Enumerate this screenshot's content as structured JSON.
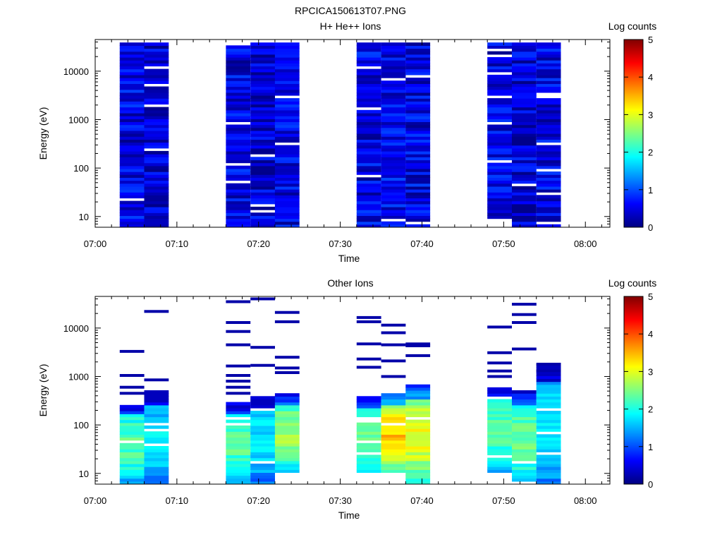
{
  "figure": {
    "title": "RPCICA150613T07.PNG"
  },
  "colorbar": {
    "label": "Log counts",
    "ticks": [
      "0",
      "1",
      "2",
      "3",
      "4",
      "5"
    ],
    "range": [
      0,
      5
    ],
    "colormap": [
      "#000080",
      "#0000ff",
      "#0080ff",
      "#00ffff",
      "#80ff80",
      "#ffff00",
      "#ff8000",
      "#ff0000",
      "#800000"
    ]
  },
  "chart_data": [
    {
      "type": "heatmap",
      "title": "H+ He++ Ions",
      "xlabel": "Time",
      "ylabel": "Energy (eV)",
      "x_ticks": [
        "07:00",
        "07:10",
        "07:20",
        "07:30",
        "07:40",
        "07:50",
        "08:00"
      ],
      "y_ticks": [
        "10",
        "100",
        "1000",
        "10000"
      ],
      "y_scale": "log",
      "ylim": [
        6,
        45000
      ],
      "xlim": [
        "07:00",
        "08:03"
      ],
      "colorbar_label": "Log counts",
      "colorbar_range": [
        0,
        5
      ],
      "blocks": [
        {
          "start": "07:03",
          "end": "07:06",
          "typical_log_counts": 0.5,
          "upper_energy": 40000,
          "lower_energy": 6
        },
        {
          "start": "07:06",
          "end": "07:09",
          "typical_log_counts": 0.4,
          "upper_energy": 40000,
          "lower_energy": 6
        },
        {
          "start": "07:16",
          "end": "07:19",
          "typical_log_counts": 0.5,
          "upper_energy": 40000,
          "lower_energy": 6
        },
        {
          "start": "07:19",
          "end": "07:22",
          "typical_log_counts": 0.4,
          "upper_energy": 40000,
          "lower_energy": 6
        },
        {
          "start": "07:22",
          "end": "07:25",
          "typical_log_counts": 0.5,
          "upper_energy": 40000,
          "lower_energy": 6
        },
        {
          "start": "07:32",
          "end": "07:35",
          "typical_log_counts": 0.5,
          "upper_energy": 40000,
          "lower_energy": 6
        },
        {
          "start": "07:35",
          "end": "07:38",
          "typical_log_counts": 0.6,
          "upper_energy": 40000,
          "lower_energy": 6
        },
        {
          "start": "07:38",
          "end": "07:41",
          "typical_log_counts": 0.5,
          "upper_energy": 40000,
          "lower_energy": 6
        },
        {
          "start": "07:48",
          "end": "07:51",
          "typical_log_counts": 0.5,
          "upper_energy": 40000,
          "lower_energy": 9
        },
        {
          "start": "07:51",
          "end": "07:54",
          "typical_log_counts": 0.4,
          "upper_energy": 40000,
          "lower_energy": 6
        },
        {
          "start": "07:54",
          "end": "07:57",
          "typical_log_counts": 0.5,
          "upper_energy": 40000,
          "lower_energy": 6
        }
      ]
    },
    {
      "type": "heatmap",
      "title": "Other Ions",
      "xlabel": "Time",
      "ylabel": "Energy (eV)",
      "x_ticks": [
        "07:00",
        "07:10",
        "07:20",
        "07:30",
        "07:40",
        "07:50",
        "08:00"
      ],
      "y_ticks": [
        "10",
        "100",
        "1000",
        "10000"
      ],
      "y_scale": "log",
      "ylim": [
        6,
        45000
      ],
      "xlim": [
        "07:00",
        "08:03"
      ],
      "colorbar_label": "Log counts",
      "colorbar_range": [
        0,
        5
      ],
      "blocks": [
        {
          "start": "07:03",
          "end": "07:06",
          "peak_log_counts": 2.0,
          "dense_upper_energy": 300,
          "lower_energy": 6,
          "sparse_lines_eV": [
            3300,
            1050,
            600,
            450
          ]
        },
        {
          "start": "07:06",
          "end": "07:09",
          "peak_log_counts": 1.5,
          "dense_upper_energy": 500,
          "lower_energy": 6,
          "sparse_lines_eV": [
            22000,
            850
          ]
        },
        {
          "start": "07:16",
          "end": "07:19",
          "peak_log_counts": 2.0,
          "dense_upper_energy": 300,
          "lower_energy": 6,
          "sparse_lines_eV": [
            35000,
            13000,
            8500,
            4500,
            1650,
            1050,
            800,
            600,
            450
          ]
        },
        {
          "start": "07:19",
          "end": "07:22",
          "peak_log_counts": 1.5,
          "dense_upper_energy": 420,
          "lower_energy": 6,
          "sparse_lines_eV": [
            40000,
            4000,
            1700
          ]
        },
        {
          "start": "07:22",
          "end": "07:25",
          "peak_log_counts": 2.4,
          "dense_upper_energy": 470,
          "lower_energy": 10,
          "sparse_lines_eV": [
            21000,
            13500,
            2500,
            1500,
            1200
          ]
        },
        {
          "start": "07:32",
          "end": "07:35",
          "peak_log_counts": 2.2,
          "dense_upper_energy": 400,
          "lower_energy": 10,
          "sparse_lines_eV": [
            16500,
            13500,
            4700,
            2300,
            1550
          ]
        },
        {
          "start": "07:35",
          "end": "07:38",
          "peak_log_counts": 3.1,
          "dense_upper_energy": 430,
          "lower_energy": 10,
          "sparse_lines_eV": [
            11500,
            8000,
            4500,
            2100,
            1000
          ]
        },
        {
          "start": "07:38",
          "end": "07:41",
          "peak_log_counts": 2.8,
          "dense_upper_energy": 700,
          "lower_energy": 6,
          "sparse_lines_eV": [
            4700,
            4300,
            2700
          ]
        },
        {
          "start": "07:48",
          "end": "07:51",
          "peak_log_counts": 2.0,
          "dense_upper_energy": 600,
          "lower_energy": 10,
          "sparse_lines_eV": [
            10500,
            3100,
            1900,
            1300,
            1000
          ]
        },
        {
          "start": "07:51",
          "end": "07:54",
          "peak_log_counts": 2.1,
          "dense_upper_energy": 540,
          "lower_energy": 6,
          "sparse_lines_eV": [
            31000,
            19000,
            13000,
            3700
          ]
        },
        {
          "start": "07:54",
          "end": "07:57",
          "peak_log_counts": 1.6,
          "dense_upper_energy": 1800,
          "lower_energy": 6,
          "sparse_lines_eV": [
            1800,
            1300
          ]
        }
      ]
    }
  ]
}
